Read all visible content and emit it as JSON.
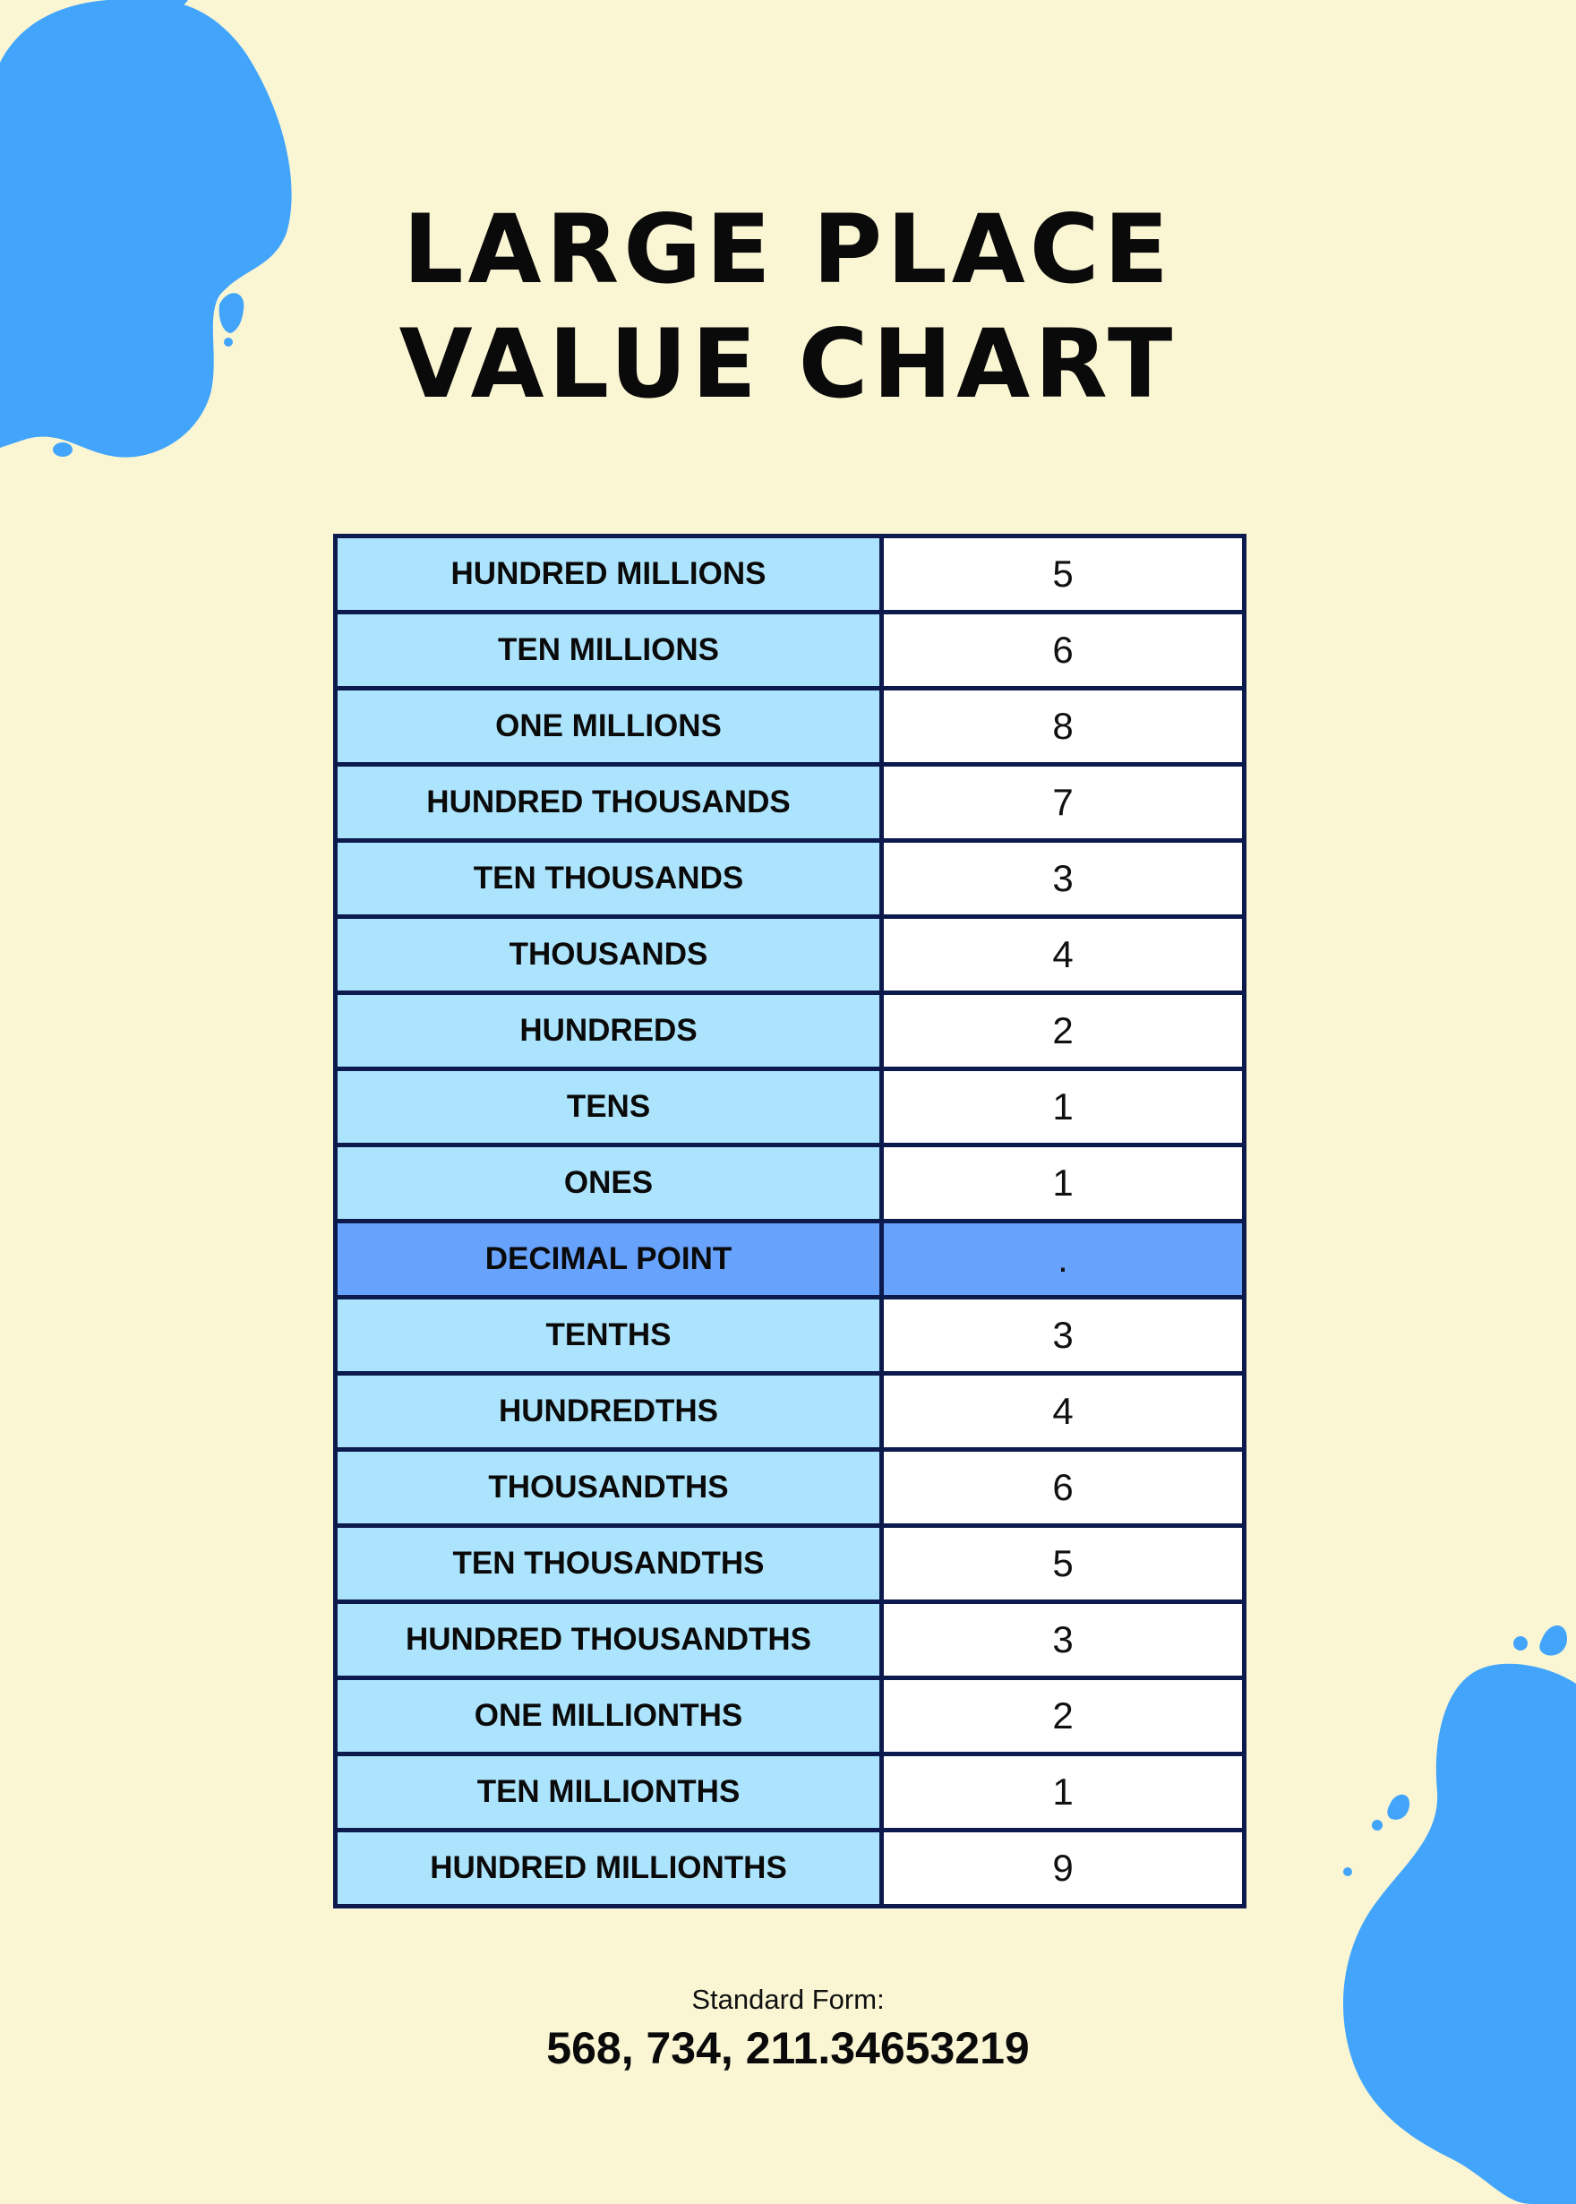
{
  "title": {
    "line1": "LARGE PLACE",
    "line2": "VALUE CHART"
  },
  "colors": {
    "background": "#faf6d4",
    "blob": "#42a5fb",
    "place_cell": "#ade4fd",
    "decimal_row": "#67a2fc",
    "border": "#0d1a4d"
  },
  "rows": [
    {
      "place": "HUNDRED MILLIONS",
      "digit": "5"
    },
    {
      "place": "TEN MILLIONS",
      "digit": "6"
    },
    {
      "place": "ONE MILLIONS",
      "digit": "8"
    },
    {
      "place": "HUNDRED THOUSANDS",
      "digit": "7"
    },
    {
      "place": "TEN THOUSANDS",
      "digit": "3"
    },
    {
      "place": "THOUSANDS",
      "digit": "4"
    },
    {
      "place": "HUNDREDS",
      "digit": "2"
    },
    {
      "place": "TENS",
      "digit": "1"
    },
    {
      "place": "ONES",
      "digit": "1"
    },
    {
      "place": "DECIMAL POINT",
      "digit": "."
    },
    {
      "place": "TENTHS",
      "digit": "3"
    },
    {
      "place": "HUNDREDTHS",
      "digit": "4"
    },
    {
      "place": "THOUSANDTHS",
      "digit": "6"
    },
    {
      "place": "TEN THOUSANDTHS",
      "digit": "5"
    },
    {
      "place": "HUNDRED THOUSANDTHS",
      "digit": "3"
    },
    {
      "place": "ONE MILLIONTHS",
      "digit": "2"
    },
    {
      "place": "TEN MILLIONTHS",
      "digit": "1"
    },
    {
      "place": "HUNDRED MILLIONTHS",
      "digit": "9"
    }
  ],
  "standard_form": {
    "label": "Standard Form:",
    "value": "568, 734, 211.34653219"
  }
}
